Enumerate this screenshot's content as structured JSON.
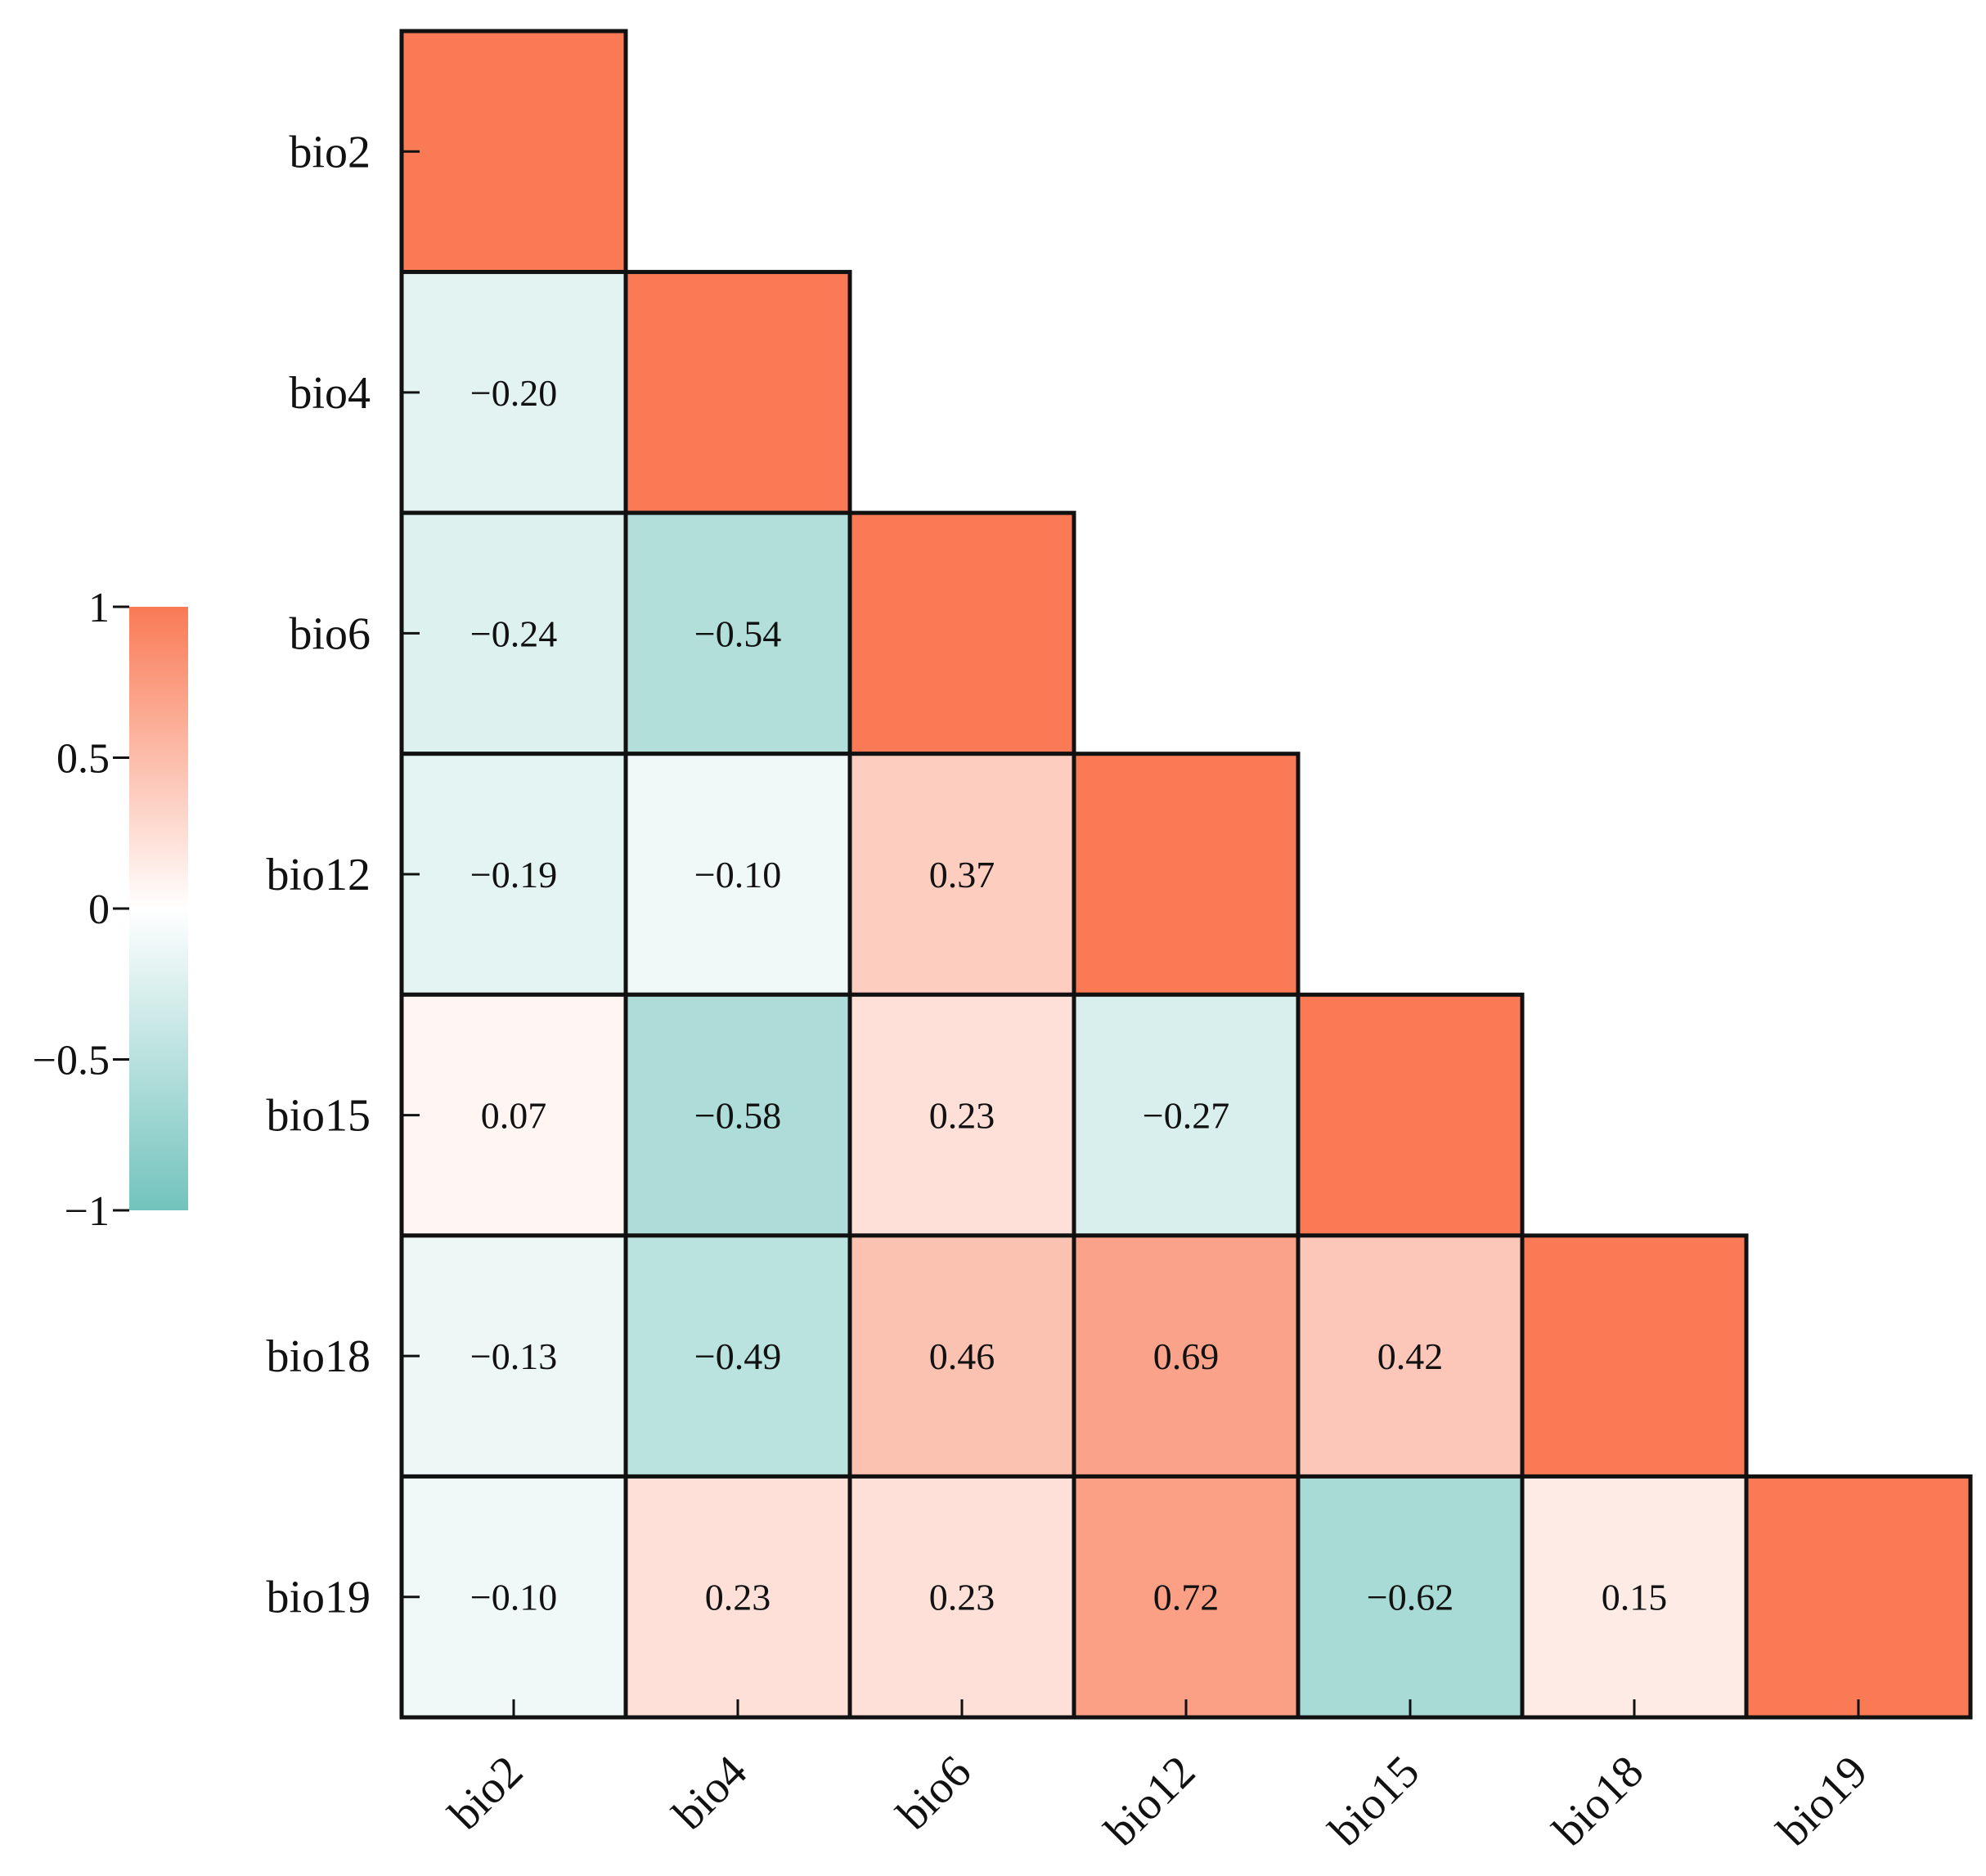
{
  "chart_data": {
    "type": "heatmap",
    "variables": [
      "bio2",
      "bio4",
      "bio6",
      "bio12",
      "bio15",
      "bio18",
      "bio19"
    ],
    "matrix_lower": [
      [
        1
      ],
      [
        -0.2,
        1
      ],
      [
        -0.24,
        -0.54,
        1
      ],
      [
        -0.19,
        -0.1,
        0.37,
        1
      ],
      [
        0.07,
        -0.58,
        0.23,
        -0.27,
        1
      ],
      [
        -0.13,
        -0.49,
        0.46,
        0.69,
        0.42,
        1
      ],
      [
        -0.1,
        0.23,
        0.23,
        0.72,
        -0.62,
        0.15,
        1
      ]
    ],
    "value_labels": [
      [
        ""
      ],
      [
        "−0.20",
        ""
      ],
      [
        "−0.24",
        "−0.54",
        ""
      ],
      [
        "−0.19",
        "−0.10",
        "0.37",
        ""
      ],
      [
        "0.07",
        "−0.58",
        "0.23",
        "−0.27",
        ""
      ],
      [
        "−0.13",
        "−0.49",
        "0.46",
        "0.69",
        "0.42",
        ""
      ],
      [
        "−0.10",
        "0.23",
        "0.23",
        "0.72",
        "−0.62",
        "0.15",
        ""
      ]
    ],
    "diagonal_shown_without_label": true,
    "colorbar": {
      "range": [
        -1,
        1
      ],
      "ticks": [
        1,
        0.5,
        0,
        -0.5,
        -1
      ],
      "tick_labels": [
        "1",
        "0.5",
        "0",
        "−0.5",
        "−1"
      ],
      "placement": "left",
      "low_color": "#72c3bd",
      "mid_color": "#ffffff",
      "high_color": "#f97a55"
    },
    "title": "",
    "xlabel": "",
    "ylabel": ""
  }
}
